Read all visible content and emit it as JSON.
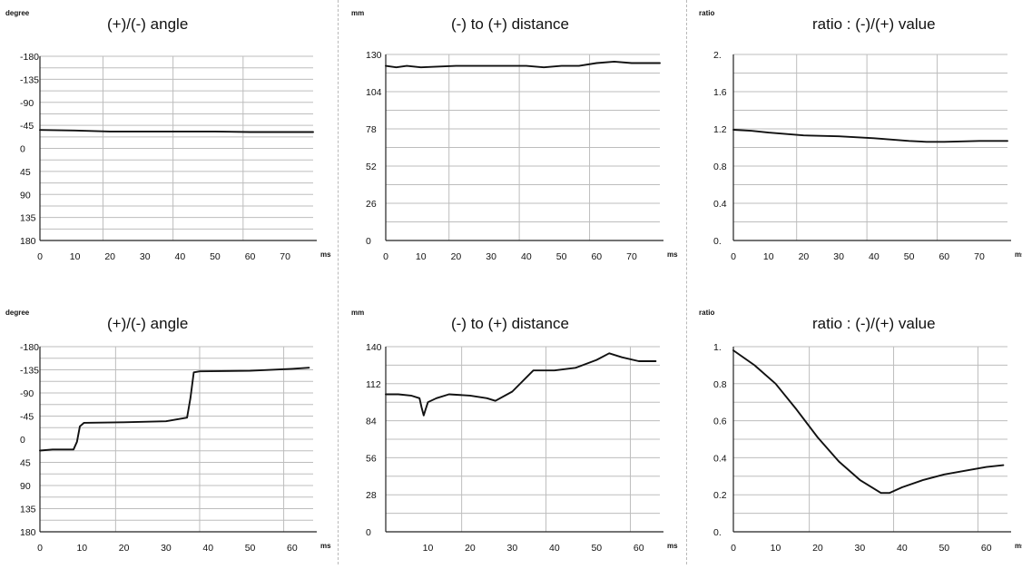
{
  "chart_data": [
    {
      "type": "line",
      "title": "(+)/(-) angle",
      "ylabel": "degree",
      "xlabel": "ms",
      "y_ticks": [
        "-180",
        "-135",
        "-90",
        "-45",
        "0",
        "45",
        "90",
        "135",
        "180"
      ],
      "x_ticks": [
        "0",
        "10",
        "20",
        "30",
        "40",
        "50",
        "60",
        "70"
      ],
      "xlim": [
        0,
        78
      ],
      "ylim": [
        -180,
        180
      ],
      "y_inverted": true,
      "grid": true,
      "series": [
        {
          "x": [
            0,
            10,
            20,
            30,
            40,
            50,
            60,
            70,
            78
          ],
          "y": [
            -36,
            -35,
            -33,
            -33,
            -33,
            -33,
            -32,
            -32,
            -32
          ]
        }
      ]
    },
    {
      "type": "line",
      "title": "(-) to (+) distance",
      "ylabel": "mm",
      "xlabel": "ms",
      "y_ticks": [
        "0",
        "26",
        "52",
        "78",
        "104",
        "130"
      ],
      "x_ticks": [
        "0",
        "10",
        "20",
        "30",
        "40",
        "50",
        "60",
        "70"
      ],
      "xlim": [
        0,
        78
      ],
      "ylim": [
        0,
        130
      ],
      "grid": true,
      "series": [
        {
          "x": [
            0,
            3,
            6,
            10,
            20,
            30,
            40,
            45,
            50,
            55,
            60,
            65,
            70,
            78
          ],
          "y": [
            122,
            121,
            122,
            121,
            122,
            122,
            122,
            121,
            122,
            122,
            124,
            125,
            124,
            124
          ]
        }
      ]
    },
    {
      "type": "line",
      "title": "ratio : (-)/(+) value",
      "ylabel": "ratio",
      "xlabel": "ms",
      "y_ticks": [
        "0.",
        "0.4",
        "0.8",
        "1.2",
        "1.6",
        "2."
      ],
      "x_ticks": [
        "0",
        "10",
        "20",
        "30",
        "40",
        "50",
        "60",
        "70"
      ],
      "xlim": [
        0,
        78
      ],
      "ylim": [
        0,
        2
      ],
      "grid": true,
      "series": [
        {
          "x": [
            0,
            5,
            10,
            20,
            30,
            40,
            50,
            55,
            60,
            70,
            78
          ],
          "y": [
            1.19,
            1.18,
            1.16,
            1.13,
            1.12,
            1.1,
            1.07,
            1.06,
            1.06,
            1.07,
            1.07
          ]
        }
      ]
    },
    {
      "type": "line",
      "title": "(+)/(-) angle",
      "ylabel": "degree",
      "xlabel": "ms",
      "y_ticks": [
        "-180",
        "-135",
        "-90",
        "-45",
        "0",
        "45",
        "90",
        "135",
        "180"
      ],
      "x_ticks": [
        "0",
        "10",
        "20",
        "30",
        "40",
        "50",
        "60"
      ],
      "xlim": [
        0,
        65
      ],
      "ylim": [
        -180,
        180
      ],
      "y_inverted": true,
      "grid": true,
      "series": [
        {
          "x": [
            0,
            3,
            8,
            8.8,
            9.5,
            10.5,
            20,
            30,
            35,
            35.8,
            36.6,
            38,
            50,
            60,
            64
          ],
          "y": [
            22,
            20,
            20,
            5,
            -25,
            -32,
            -33,
            -35,
            -42,
            -80,
            -130,
            -132,
            -133,
            -137,
            -139
          ]
        }
      ]
    },
    {
      "type": "line",
      "title": "(-) to (+) distance",
      "ylabel": "mm",
      "xlabel": "ms",
      "y_ticks": [
        "0",
        "28",
        "56",
        "84",
        "112",
        "140"
      ],
      "x_ticks": [
        "10",
        "20",
        "30",
        "40",
        "50",
        "60"
      ],
      "xlim": [
        0,
        65
      ],
      "ylim": [
        0,
        140
      ],
      "grid": true,
      "series": [
        {
          "x": [
            0,
            3,
            6,
            8,
            8.5,
            9,
            9.5,
            10,
            12,
            15,
            20,
            24,
            26,
            30,
            35,
            40,
            45,
            50,
            53,
            56,
            60,
            64
          ],
          "y": [
            104,
            104,
            103,
            101,
            94,
            88,
            93,
            98,
            101,
            104,
            103,
            101,
            99,
            106,
            122,
            122,
            124,
            130,
            135,
            132,
            129,
            129
          ]
        }
      ]
    },
    {
      "type": "line",
      "title": "ratio : (-)/(+) value",
      "ylabel": "ratio",
      "xlabel": "ms",
      "y_ticks": [
        "0.",
        "0.2",
        "0.4",
        "0.6",
        "0.8",
        "1."
      ],
      "x_ticks": [
        "0",
        "10",
        "20",
        "30",
        "40",
        "50",
        "60"
      ],
      "xlim": [
        0,
        65
      ],
      "ylim": [
        0,
        1
      ],
      "grid": true,
      "series": [
        {
          "x": [
            0,
            5,
            10,
            15,
            20,
            25,
            30,
            35,
            37,
            40,
            45,
            50,
            55,
            60,
            64
          ],
          "y": [
            0.98,
            0.9,
            0.8,
            0.66,
            0.51,
            0.38,
            0.28,
            0.21,
            0.21,
            0.24,
            0.28,
            0.31,
            0.33,
            0.35,
            0.36
          ]
        }
      ]
    }
  ]
}
